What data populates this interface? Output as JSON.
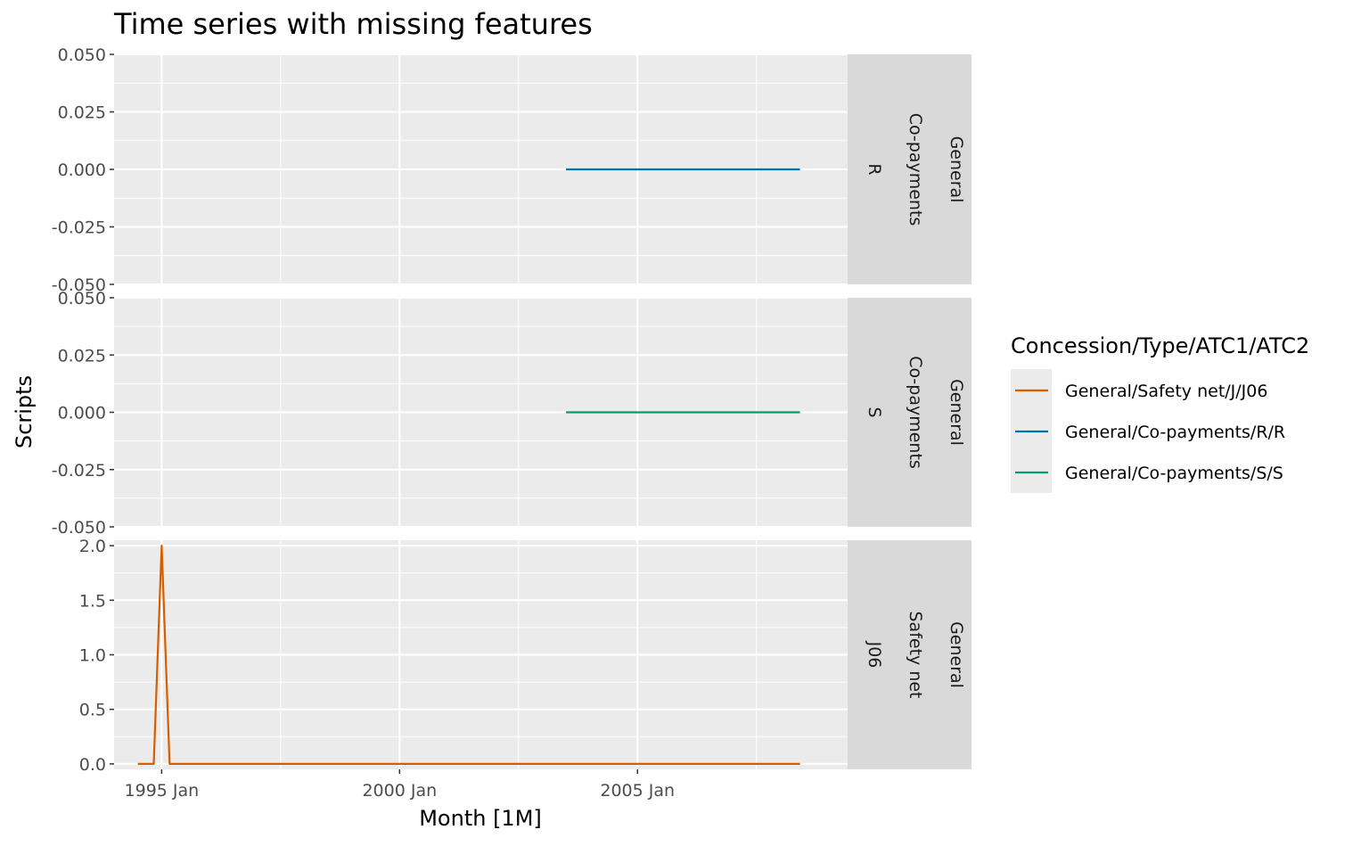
{
  "chart_data": {
    "type": "line",
    "title": "Time series with missing features",
    "xlabel": "Month [1M]",
    "ylabel": "Scripts",
    "xlim": [
      "1994-01",
      "2009-06"
    ],
    "x_ticks": [
      "1995 Jan",
      "2000 Jan",
      "2005 Jan"
    ],
    "legend_title": "Concession/Type/ATC1/ATC2",
    "legend_position": "right",
    "grid": true,
    "panels": [
      {
        "strip": [
          "General",
          "Co-payments",
          "R"
        ],
        "ylim": [
          -0.05,
          0.05
        ],
        "y_ticks": [
          "0.050",
          "0.025",
          "0.000",
          "-0.025",
          "-0.050"
        ],
        "y_tick_values": [
          0.05,
          0.025,
          0,
          -0.025,
          -0.05
        ],
        "series": [
          {
            "name": "General/Co-payments/R/R",
            "x": [
              "2003-07",
              "2008-06"
            ],
            "values": [
              0,
              0
            ]
          }
        ]
      },
      {
        "strip": [
          "General",
          "Co-payments",
          "S"
        ],
        "ylim": [
          -0.05,
          0.05
        ],
        "y_ticks": [
          "0.050",
          "0.025",
          "0.000",
          "-0.025",
          "-0.050"
        ],
        "y_tick_values": [
          0.05,
          0.025,
          0,
          -0.025,
          -0.05
        ],
        "series": [
          {
            "name": "General/Co-payments/S/S",
            "x": [
              "2003-07",
              "2008-06"
            ],
            "values": [
              0,
              0
            ]
          }
        ]
      },
      {
        "strip": [
          "General",
          "Safety net",
          "J06"
        ],
        "ylim": [
          -0.05,
          2.05
        ],
        "y_ticks": [
          "2.0",
          "1.5",
          "1.0",
          "0.5",
          "0.0"
        ],
        "y_tick_values": [
          2,
          1.5,
          1,
          0.5,
          0
        ],
        "series": [
          {
            "name": "General/Safety net/J/J06",
            "x": [
              "1994-07",
              "1994-11",
              "1995-01",
              "1995-03",
              "2008-06"
            ],
            "values": [
              0,
              0,
              2,
              0,
              0
            ]
          }
        ]
      }
    ],
    "legend": [
      {
        "label": "General/Safety net/J/J06",
        "color": "#D55E00"
      },
      {
        "label": "General/Co-payments/R/R",
        "color": "#0072B2"
      },
      {
        "label": "General/Co-payments/S/S",
        "color": "#009E73"
      }
    ]
  }
}
